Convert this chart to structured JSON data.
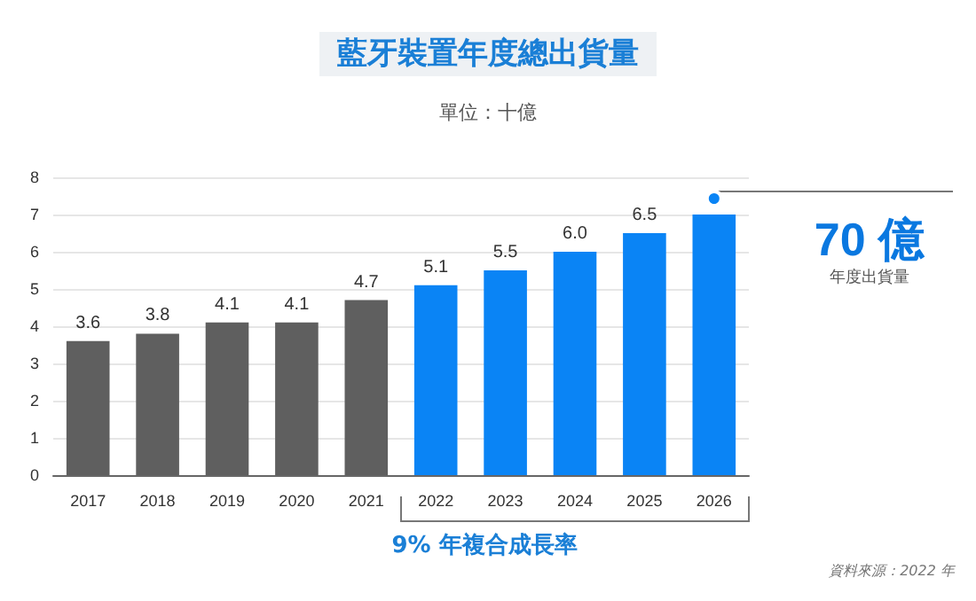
{
  "chart_data": {
    "type": "bar",
    "title": "藍牙裝置年度總出貨量",
    "subtitle": "單位：十億",
    "categories": [
      "2017",
      "2018",
      "2019",
      "2020",
      "2021",
      "2022",
      "2023",
      "2024",
      "2025",
      "2026"
    ],
    "values": [
      3.6,
      3.8,
      4.1,
      4.1,
      4.7,
      5.1,
      5.5,
      6.0,
      6.5,
      7.0
    ],
    "colors": [
      "#5f5f5f",
      "#5f5f5f",
      "#5f5f5f",
      "#5f5f5f",
      "#5f5f5f",
      "#0a84f5",
      "#0a84f5",
      "#0a84f5",
      "#0a84f5",
      "#0a84f5"
    ],
    "value_labels": [
      "3.6",
      "3.8",
      "4.1",
      "4.1",
      "4.7",
      "5.1",
      "5.5",
      "6.0",
      "6.5",
      null
    ],
    "ylim": [
      0,
      8
    ],
    "yticks": [
      0,
      1,
      2,
      3,
      4,
      5,
      6,
      7,
      8
    ],
    "grid": "y",
    "annotations": [
      {
        "text": "70 億",
        "x": "2026",
        "y": 7
      },
      "年度出貨量",
      "9% 年複合成長率",
      "資料來源：2022 年"
    ]
  }
}
